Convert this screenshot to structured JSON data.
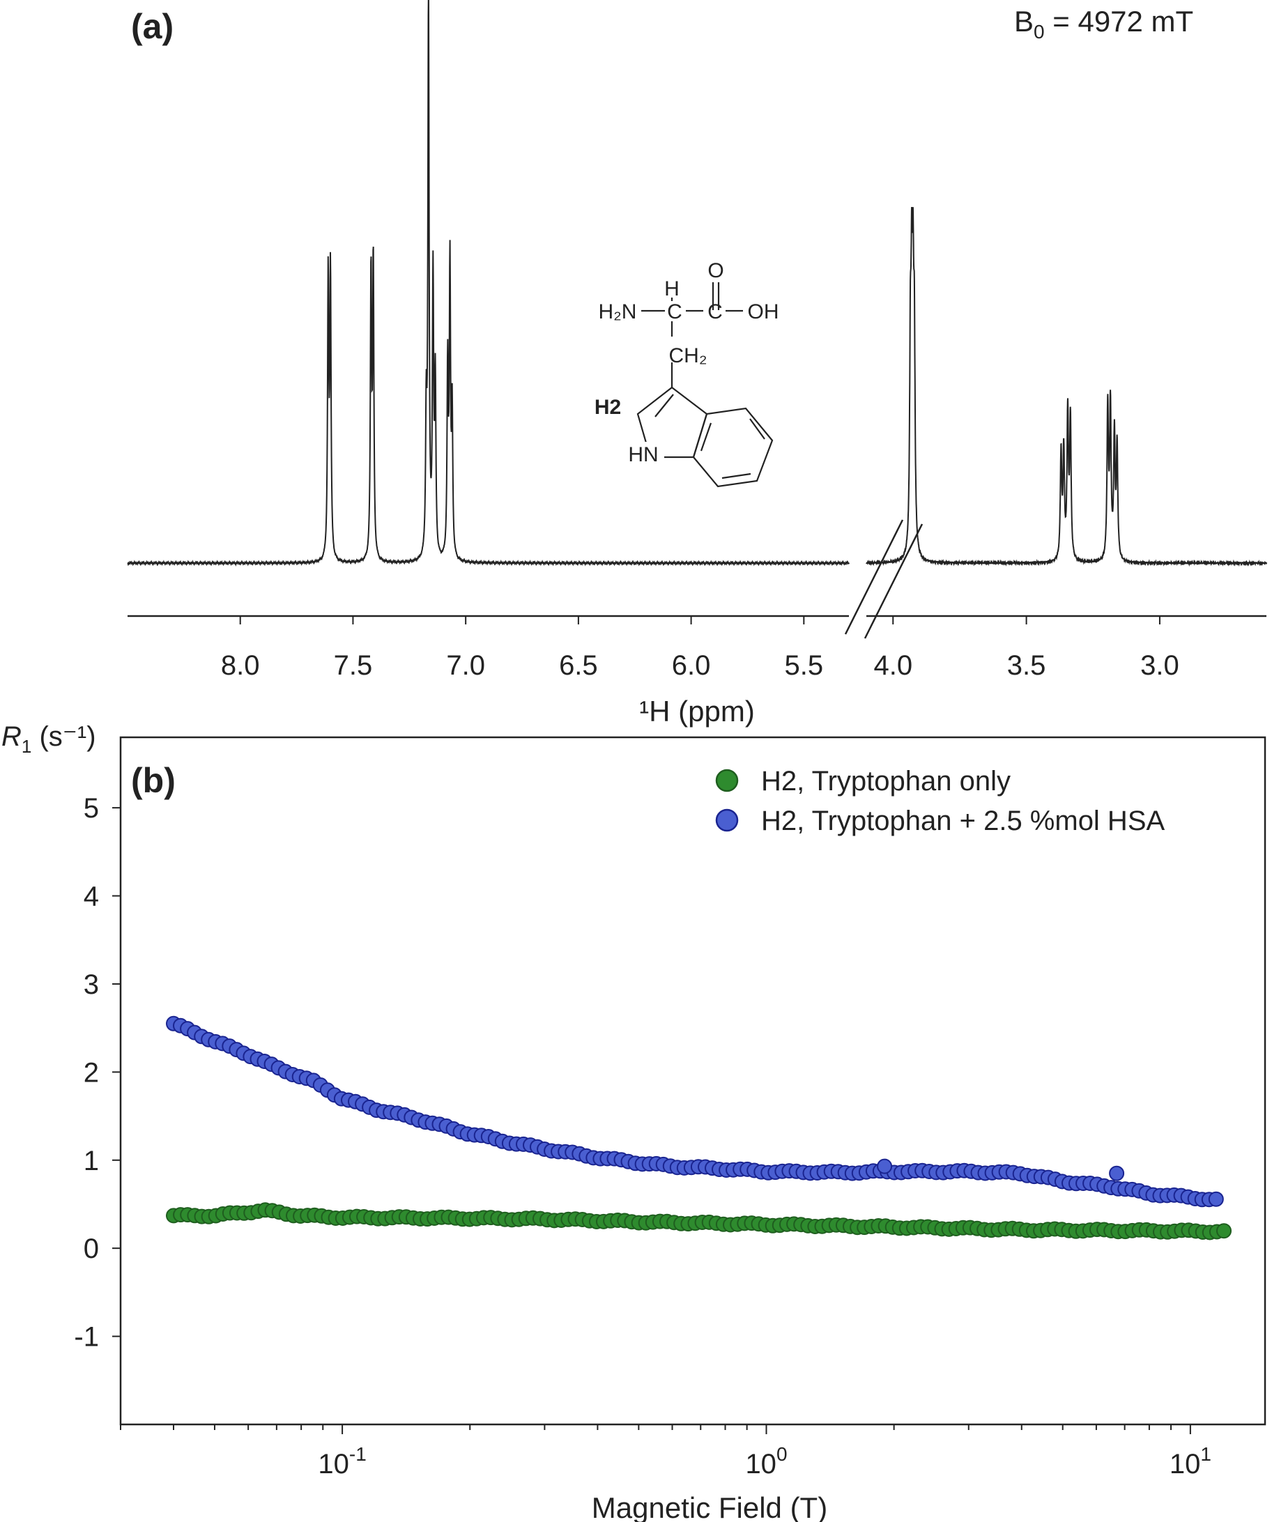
{
  "panel_a": {
    "label": "(a)",
    "field_main": "B",
    "field_sub": "0",
    "field_value": " = 4972 mT",
    "xlabel": "¹H (ppm)",
    "molecule": {
      "o": "O",
      "h2n": "H₂N",
      "h": "H",
      "c1": "C",
      "c2": "C",
      "oh": "OH",
      "ch2": "CH₂",
      "h2": "H2",
      "hn": "HN"
    }
  },
  "panel_b": {
    "label": "(b)",
    "ylabel_main": "R",
    "ylabel_sub": "1",
    "ylabel_unit": " (s⁻¹)",
    "xlabel": "Magnetic Field (T)"
  },
  "colors": {
    "green_fill": "#2e8b2e",
    "green_edge": "#1f5e1f",
    "blue_fill": "#4a5fd1",
    "blue_edge": "#1a2490",
    "line": "#222222"
  },
  "chart_data": [
    {
      "type": "line",
      "title": "",
      "xlabel": "¹H (ppm)",
      "x_axis_reversed": true,
      "x_axis_break": [
        5.3,
        4.1
      ],
      "segment_left_xlim": [
        8.5,
        5.3
      ],
      "segment_right_xlim": [
        4.1,
        2.6
      ],
      "x_ticks_left": [
        "8.0",
        "7.5",
        "7.0",
        "6.5",
        "6.0",
        "5.5"
      ],
      "x_ticks_right": [
        "4.0",
        "3.5",
        "3.0"
      ],
      "peaks": [
        {
          "ppm": 7.61,
          "height": 0.5
        },
        {
          "ppm": 7.6,
          "height": 0.51
        },
        {
          "ppm": 7.42,
          "height": 0.51
        },
        {
          "ppm": 7.41,
          "height": 0.53
        },
        {
          "ppm": 7.175,
          "height": 0.24
        },
        {
          "ppm": 7.165,
          "height": 1.0
        },
        {
          "ppm": 7.145,
          "height": 0.5
        },
        {
          "ppm": 7.135,
          "height": 0.31
        },
        {
          "ppm": 7.08,
          "height": 0.34
        },
        {
          "ppm": 7.07,
          "height": 0.52
        },
        {
          "ppm": 7.06,
          "height": 0.26
        },
        {
          "ppm": 3.935,
          "height": 0.34
        },
        {
          "ppm": 3.93,
          "height": 0.39
        },
        {
          "ppm": 3.925,
          "height": 0.39
        },
        {
          "ppm": 3.92,
          "height": 0.34
        },
        {
          "ppm": 3.37,
          "height": 0.19
        },
        {
          "ppm": 3.36,
          "height": 0.19
        },
        {
          "ppm": 3.345,
          "height": 0.26
        },
        {
          "ppm": 3.335,
          "height": 0.25
        },
        {
          "ppm": 3.195,
          "height": 0.27
        },
        {
          "ppm": 3.185,
          "height": 0.27
        },
        {
          "ppm": 3.17,
          "height": 0.22
        },
        {
          "ppm": 3.16,
          "height": 0.2
        }
      ],
      "structure": "tryptophan with H2 labeled on the indole ring"
    },
    {
      "type": "scatter",
      "title": "",
      "xlabel": "Magnetic Field (T)",
      "ylabel": "R1 (s-1)",
      "x_scale": "log",
      "xlim": [
        0.03,
        15
      ],
      "ylim": [
        -2,
        5.8
      ],
      "y_ticks": [
        "5",
        "4",
        "3",
        "2",
        "1",
        "0",
        "-1"
      ],
      "x_ticks": [
        {
          "base": "10",
          "exp": "-1"
        },
        {
          "base": "10",
          "exp": "0"
        },
        {
          "base": "10",
          "exp": "1"
        }
      ],
      "legend_position": "top-right",
      "series": [
        {
          "name": "H2, Tryptophan only",
          "color": "#2e8b2e",
          "anchors": [
            [
              0.04,
              0.37
            ],
            [
              0.05,
              0.37
            ],
            [
              0.065,
              0.43
            ],
            [
              0.08,
              0.37
            ],
            [
              0.1,
              0.35
            ],
            [
              0.2,
              0.34
            ],
            [
              0.3,
              0.33
            ],
            [
              0.5,
              0.3
            ],
            [
              1,
              0.27
            ],
            [
              2,
              0.24
            ],
            [
              4,
              0.21
            ],
            [
              7,
              0.2
            ],
            [
              12,
              0.19
            ]
          ]
        },
        {
          "name": "H2, Tryptophan + 2.5 %mol HSA",
          "color": "#4a5fd1",
          "anchors": [
            [
              0.04,
              2.55
            ],
            [
              0.05,
              2.35
            ],
            [
              0.06,
              2.2
            ],
            [
              0.07,
              2.05
            ],
            [
              0.085,
              1.9
            ],
            [
              0.1,
              1.7
            ],
            [
              0.12,
              1.58
            ],
            [
              0.15,
              1.47
            ],
            [
              0.2,
              1.3
            ],
            [
              0.25,
              1.2
            ],
            [
              0.3,
              1.13
            ],
            [
              0.4,
              1.03
            ],
            [
              0.5,
              0.97
            ],
            [
              0.6,
              0.93
            ],
            [
              0.8,
              0.9
            ],
            [
              1,
              0.87
            ],
            [
              1.5,
              0.86
            ],
            [
              2,
              0.87
            ],
            [
              3,
              0.87
            ],
            [
              4,
              0.85
            ],
            [
              5,
              0.76
            ],
            [
              6.5,
              0.7
            ],
            [
              8,
              0.62
            ],
            [
              11.5,
              0.55
            ]
          ],
          "outliers": [
            [
              1.9,
              0.93
            ],
            [
              6.7,
              0.85
            ]
          ]
        }
      ]
    }
  ]
}
